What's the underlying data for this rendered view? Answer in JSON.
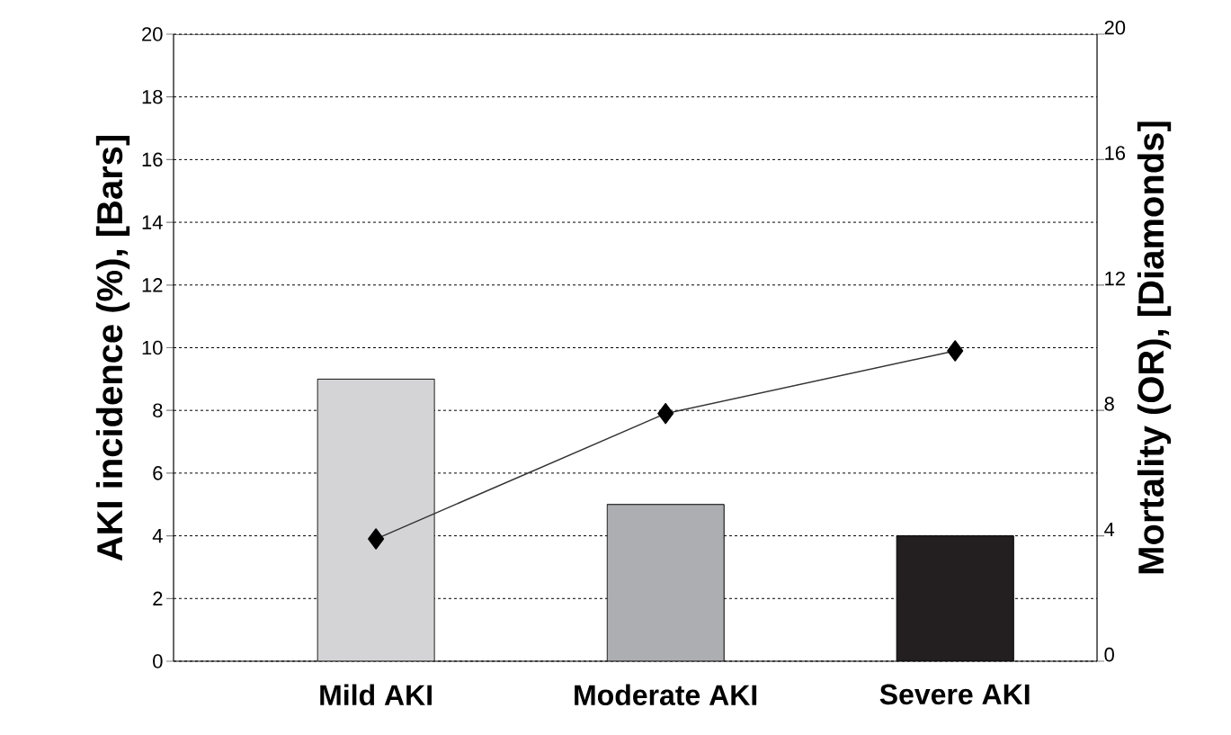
{
  "chart_data": {
    "type": "bar",
    "categories": [
      "Mild AKI",
      "Moderate AKI",
      "Severe AKI"
    ],
    "ylabel": "AKI incidence (%), [Bars]",
    "y2label": "Mortality (OR), [Diamonds]",
    "ylim": [
      0,
      20
    ],
    "yticks": [
      0,
      2,
      4,
      6,
      8,
      10,
      12,
      14,
      16,
      18,
      20
    ],
    "y2lim": [
      0,
      20
    ],
    "y2ticks": [
      0,
      4,
      8,
      12,
      16,
      20
    ],
    "grid": "y",
    "series": [
      {
        "colors": [
          "#d4d4d6",
          "#adaeb1",
          "#231f20"
        ],
        "values": [
          9,
          5,
          4
        ]
      },
      {
        "type": "line",
        "axis": "y2",
        "color": "#333333",
        "marker": "diamond",
        "values": [
          3.9,
          7.9,
          9.9
        ]
      }
    ]
  }
}
